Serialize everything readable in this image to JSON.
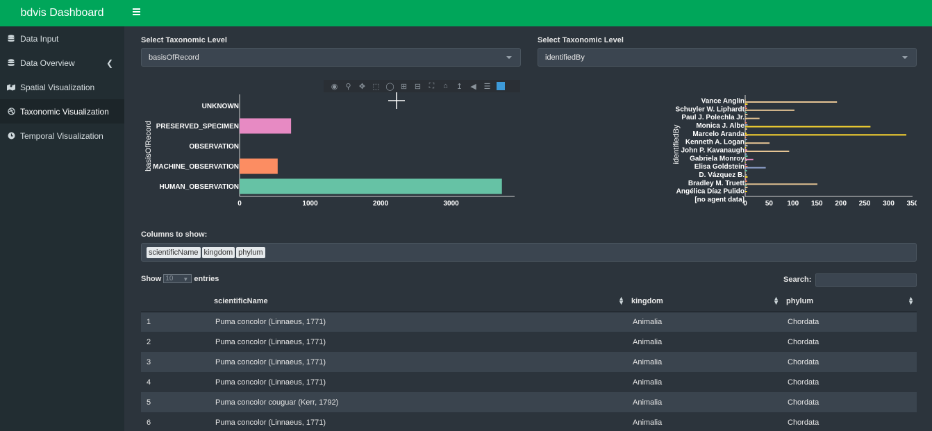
{
  "app": {
    "title": "bdvis Dashboard"
  },
  "sidebar": {
    "items": [
      {
        "label": "Data Input",
        "icon": "database-icon"
      },
      {
        "label": "Data Overview",
        "icon": "database-icon"
      },
      {
        "label": "Spatial Visualization",
        "icon": "map-icon"
      },
      {
        "label": "Taxonomic Visualization",
        "icon": "dribbble-icon"
      },
      {
        "label": "Temporal Visualization",
        "icon": "clock-icon"
      }
    ],
    "active": "Taxonomic Visualization"
  },
  "left_panel": {
    "label": "Select Taxonomic Level",
    "value": "basisOfRecord"
  },
  "right_panel": {
    "label": "Select Taxonomic Level",
    "value": "identifiedBy"
  },
  "chart_data": [
    {
      "type": "bar",
      "orientation": "horizontal",
      "ylabel": "basisOfRecord",
      "categories": [
        "HUMAN_OBSERVATION",
        "MACHINE_OBSERVATION",
        "OBSERVATION",
        "PRESERVED_SPECIMEN",
        "UNKNOWN"
      ],
      "values": [
        3720,
        540,
        0,
        730,
        0
      ],
      "colors": [
        "#66c2a5",
        "#fc8d62",
        "#8da0cb",
        "#e78ac3",
        "#a6d854"
      ],
      "xlim": [
        0,
        3900
      ],
      "xticks": [
        0,
        1000,
        2000,
        3000
      ]
    },
    {
      "type": "bar",
      "orientation": "horizontal",
      "ylabel": "identifiedBy",
      "tick_labels": [
        "Vance Anglin",
        "Schuyler W. Liphardt",
        "Paul J. Polechla Jr.",
        "Monica J. Albe",
        "Marcelo Aranda",
        "Kenneth A. Logan",
        "John P. Kavanaugh",
        "Gabriela Monroy",
        "Elisa Goldstein",
        "D. Vázquez B.",
        "Bradley M. Truett",
        "Angélica Díaz Pulido",
        "[no agent data]"
      ],
      "xlim": [
        0,
        350
      ],
      "xticks": [
        0,
        50,
        100,
        150,
        200,
        250,
        300,
        350
      ],
      "long_bars": [
        {
          "name": "Vance Anglin",
          "value": 192,
          "color": "#e5c494"
        },
        {
          "name": "Schuyler W. Liphardt",
          "value": 103,
          "color": "#e5c494"
        },
        {
          "name": "Paul J. Polechla Jr.",
          "value": 30,
          "color": "#e5c494"
        },
        {
          "name": "Monica J. Albe",
          "value": 262,
          "color": "#ffd92f"
        },
        {
          "name": "Marcelo Aranda",
          "value": 337,
          "color": "#ffd92f"
        },
        {
          "name": "Kenneth A. Logan",
          "value": 51,
          "color": "#e5c494"
        },
        {
          "name": "John P. Kavanaugh",
          "value": 92,
          "color": "#e5c494"
        },
        {
          "name": "Gabriela Monroy",
          "value": 17,
          "color": "#e78ac3"
        },
        {
          "name": "Elisa Goldstein",
          "value": 43,
          "color": "#8da0cb"
        },
        {
          "name": "Bradley M. Truett",
          "value": 151,
          "color": "#e5c494"
        }
      ]
    }
  ],
  "columns_section": {
    "label": "Columns to show:",
    "tags": [
      "scientificName",
      "kingdom",
      "phylum"
    ]
  },
  "table": {
    "show_prefix": "Show",
    "length_value": "10",
    "show_suffix": "entries",
    "search_label": "Search:",
    "headers": [
      "",
      "scientificName",
      "kingdom",
      "phylum"
    ],
    "rows": [
      [
        "1",
        "Puma concolor (Linnaeus, 1771)",
        "Animalia",
        "Chordata"
      ],
      [
        "2",
        "Puma concolor (Linnaeus, 1771)",
        "Animalia",
        "Chordata"
      ],
      [
        "3",
        "Puma concolor (Linnaeus, 1771)",
        "Animalia",
        "Chordata"
      ],
      [
        "4",
        "Puma concolor (Linnaeus, 1771)",
        "Animalia",
        "Chordata"
      ],
      [
        "5",
        "Puma concolor couguar (Kerr, 1792)",
        "Animalia",
        "Chordata"
      ],
      [
        "6",
        "Puma concolor (Linnaeus, 1771)",
        "Animalia",
        "Chordata"
      ]
    ]
  }
}
